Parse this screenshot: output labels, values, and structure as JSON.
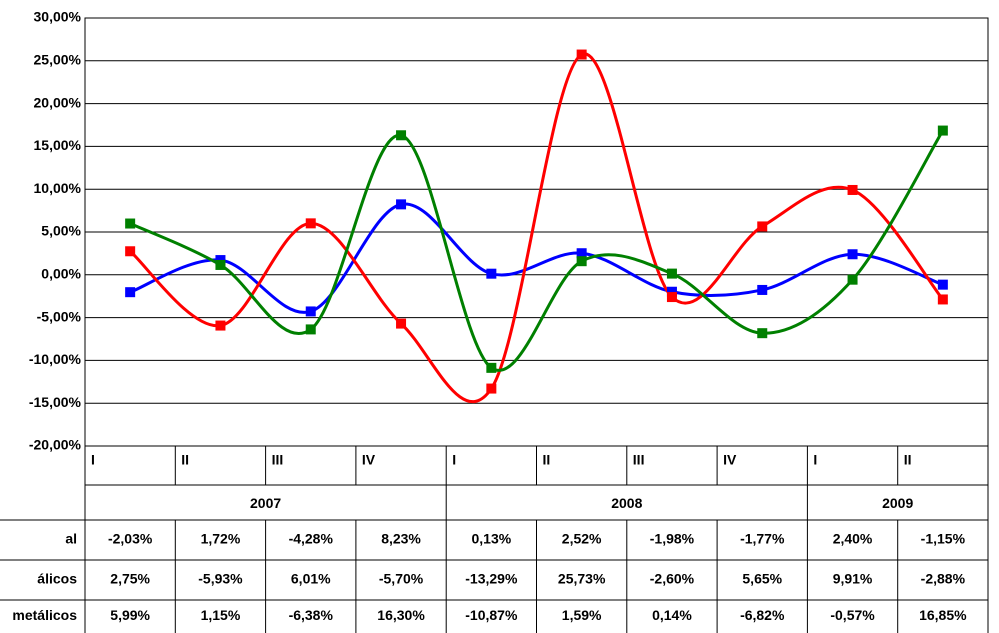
{
  "chart_data": {
    "type": "line",
    "categories": [
      "I",
      "II",
      "III",
      "IV",
      "I",
      "II",
      "III",
      "IV",
      "I",
      "II"
    ],
    "groups": [
      {
        "label": "2007",
        "span": 4
      },
      {
        "label": "2008",
        "span": 4
      },
      {
        "label": "2009",
        "span": 2
      }
    ],
    "series": [
      {
        "name": "al",
        "color": "#0000ff",
        "values": [
          -2.03,
          1.72,
          -4.28,
          8.23,
          0.13,
          2.52,
          -1.98,
          -1.77,
          2.4,
          -1.15
        ],
        "value_labels": [
          "-2,03%",
          "1,72%",
          "-4,28%",
          "8,23%",
          "0,13%",
          "2,52%",
          "-1,98%",
          "-1,77%",
          "2,40%",
          "-1,15%"
        ]
      },
      {
        "name": "álicos",
        "color": "#ff0000",
        "values": [
          2.75,
          -5.93,
          6.01,
          -5.7,
          -13.29,
          25.73,
          -2.6,
          5.65,
          9.91,
          -2.88
        ],
        "value_labels": [
          "2,75%",
          "-5,93%",
          "6,01%",
          "-5,70%",
          "-13,29%",
          "25,73%",
          "-2,60%",
          "5,65%",
          "9,91%",
          "-2,88%"
        ]
      },
      {
        "name": "metálicos",
        "color": "#008000",
        "values": [
          5.99,
          1.15,
          -6.38,
          16.3,
          -10.87,
          1.59,
          0.14,
          -6.82,
          -0.57,
          16.85
        ],
        "value_labels": [
          "5,99%",
          "1,15%",
          "-6,38%",
          "16,30%",
          "-10,87%",
          "1,59%",
          "0,14%",
          "-6,82%",
          "-0,57%",
          "16,85%"
        ]
      }
    ],
    "ylim": [
      -20,
      30
    ],
    "yticks": [
      {
        "value": -20,
        "label": "-20,00%"
      },
      {
        "value": -15,
        "label": "-15,00%"
      },
      {
        "value": -10,
        "label": "-10,00%"
      },
      {
        "value": -5,
        "label": "-5,00%"
      },
      {
        "value": 0,
        "label": "0,00%"
      },
      {
        "value": 5,
        "label": "5,00%"
      },
      {
        "value": 10,
        "label": "10,00%"
      },
      {
        "value": 15,
        "label": "15,00%"
      },
      {
        "value": 20,
        "label": "20,00%"
      },
      {
        "value": 25,
        "label": "25,00%"
      },
      {
        "value": 30,
        "label": "30,00%"
      }
    ],
    "grid": true
  }
}
